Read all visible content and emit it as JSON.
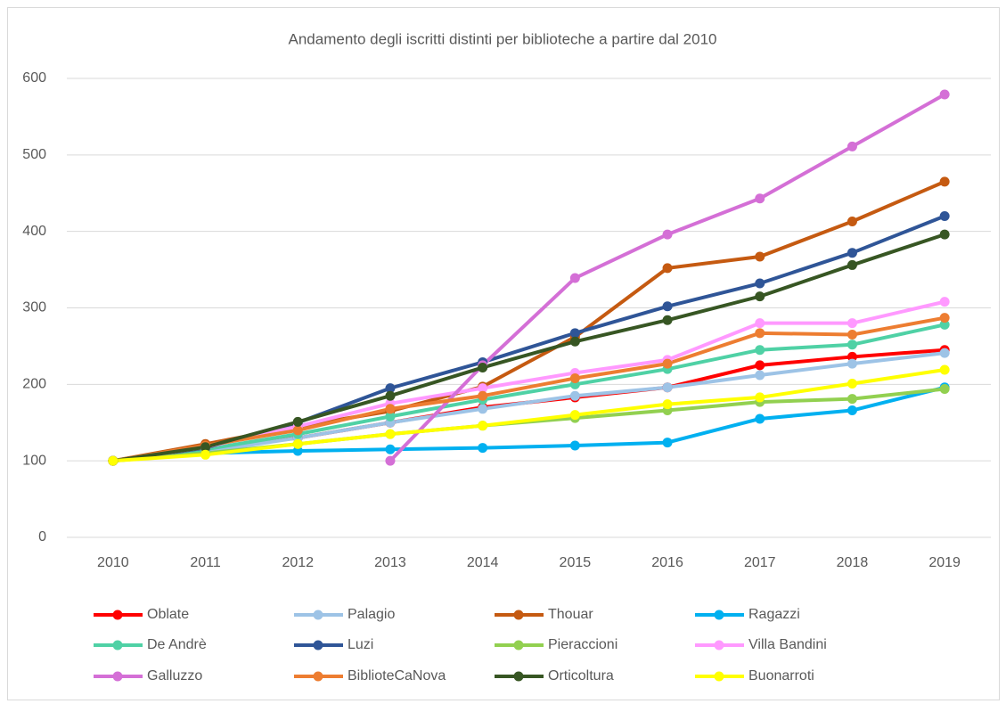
{
  "chart_data": {
    "type": "line",
    "title": "Andamento  degli iscritti distinti per biblioteche a partire dal 2010",
    "categories": [
      "2010",
      "2011",
      "2012",
      "2013",
      "2014",
      "2015",
      "2016",
      "2017",
      "2018",
      "2019"
    ],
    "ylim": [
      0,
      600
    ],
    "yticks": [
      0,
      100,
      200,
      300,
      400,
      500,
      600
    ],
    "grid": true,
    "legend": "bottom",
    "series": [
      {
        "name": "Oblate",
        "color": "#ff0000",
        "values": [
          100,
          115,
          130,
          150,
          170,
          183,
          196,
          225,
          236,
          245
        ]
      },
      {
        "name": "Palagio",
        "color": "#9dc3e6",
        "values": [
          100,
          112,
          130,
          150,
          168,
          185,
          196,
          212,
          227,
          241
        ]
      },
      {
        "name": "Thouar",
        "color": "#c55a11",
        "values": [
          100,
          122,
          145,
          165,
          197,
          262,
          352,
          367,
          413,
          465
        ]
      },
      {
        "name": "Ragazzi",
        "color": "#00b0f0",
        "values": [
          100,
          110,
          113,
          115,
          117,
          120,
          124,
          155,
          166,
          196
        ]
      },
      {
        "name": "De Andrè",
        "color": "#4fd1a5",
        "values": [
          100,
          115,
          135,
          158,
          180,
          200,
          220,
          245,
          252,
          278
        ]
      },
      {
        "name": "Luzi",
        "color": "#2f5597",
        "values": [
          100,
          117,
          150,
          195,
          229,
          267,
          302,
          332,
          372,
          420
        ]
      },
      {
        "name": "Pieraccioni",
        "color": "#92d050",
        "values": [
          100,
          110,
          122,
          135,
          146,
          156,
          166,
          177,
          181,
          194
        ]
      },
      {
        "name": "Villa Bandini",
        "color": "#ff99ff",
        "values": [
          100,
          118,
          145,
          175,
          195,
          215,
          232,
          280,
          280,
          308
        ]
      },
      {
        "name": "Galluzzo",
        "color": "#d46fd6",
        "values": [
          null,
          null,
          null,
          100,
          225,
          339,
          396,
          443,
          511,
          579
        ]
      },
      {
        "name": "BiblioteCaNova",
        "color": "#ed7d31",
        "values": [
          100,
          120,
          140,
          168,
          185,
          208,
          227,
          267,
          265,
          287
        ]
      },
      {
        "name": "Orticoltura",
        "color": "#375623",
        "values": [
          100,
          118,
          151,
          185,
          222,
          256,
          284,
          315,
          356,
          396
        ]
      },
      {
        "name": "Buonarroti",
        "color": "#ffff00",
        "values": [
          100,
          108,
          122,
          135,
          146,
          160,
          174,
          183,
          201,
          219
        ]
      }
    ]
  }
}
